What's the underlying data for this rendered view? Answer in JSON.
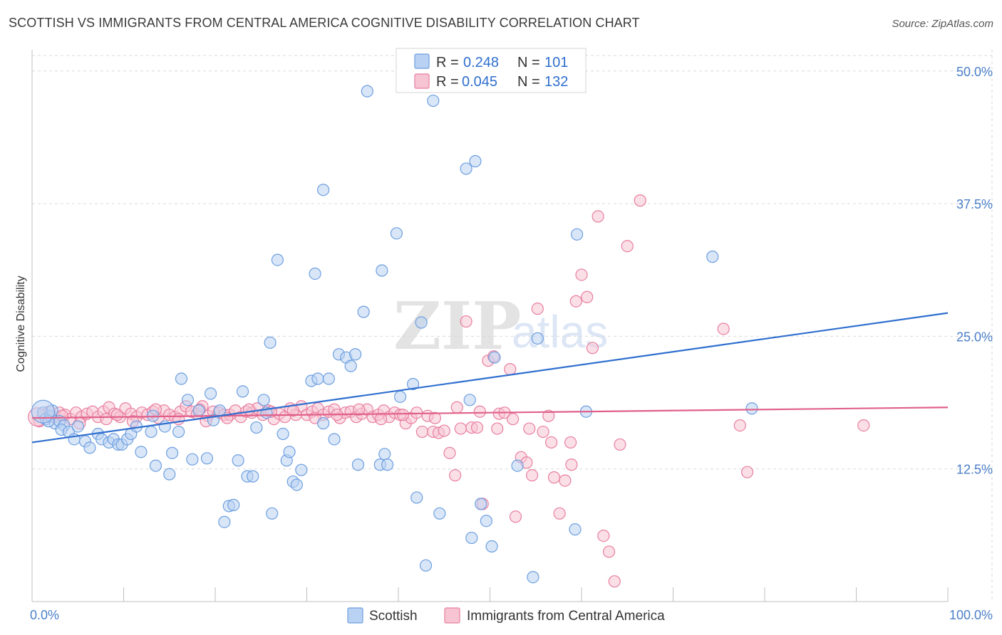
{
  "title": "SCOTTISH VS IMMIGRANTS FROM CENTRAL AMERICA COGNITIVE DISABILITY CORRELATION CHART",
  "source": "Source: ZipAtlas.com",
  "watermark": {
    "zip": "ZIP",
    "atlas": "atlas"
  },
  "colors": {
    "scottish": "#6d9fe0",
    "scottish_fill": "#b9d2f3",
    "scottish_line": "#2f6fcf",
    "immigrants": "#e87fa0",
    "immigrants_fill": "#f7c4d4",
    "immigrants_line": "#e0608a",
    "tick_text": "#4a7fc8",
    "grid": "#d9d9d9"
  },
  "legend": {
    "r_label": "R =",
    "n_label": "N =",
    "scottish_r": "0.248",
    "scottish_n": "101",
    "immigrants_r": "0.045",
    "immigrants_n": "132"
  },
  "chart_data": {
    "type": "scatter",
    "title": "SCOTTISH VS IMMIGRANTS FROM CENTRAL AMERICA COGNITIVE DISABILITY CORRELATION CHART",
    "xlabel": "",
    "ylabel": "Cognitive Disability",
    "xlim": [
      0,
      100
    ],
    "ylim": [
      0,
      52
    ],
    "x_tick_labels": [
      "0.0%",
      "100.0%"
    ],
    "y_ticks": [
      12.5,
      25.0,
      37.5,
      50.0
    ],
    "y_tick_labels": [
      "12.5%",
      "25.0%",
      "37.5%",
      "50.0%"
    ],
    "grid": true,
    "legend_position": "top-center",
    "series": [
      {
        "name": "Scottish",
        "r": 0.248,
        "n": 101,
        "trend": {
          "x": [
            0,
            100
          ],
          "y": [
            15.0,
            27.2
          ]
        },
        "points": [
          [
            1.2,
            17.8
          ],
          [
            1.5,
            17.2
          ],
          [
            2.0,
            17.5
          ],
          [
            2.5,
            16.8
          ],
          [
            3.0,
            17.0
          ],
          [
            3.5,
            16.6
          ],
          [
            1.8,
            17.0
          ],
          [
            2.2,
            18.0
          ],
          [
            3.2,
            16.2
          ],
          [
            4.0,
            16.0
          ],
          [
            5.0,
            16.5
          ],
          [
            4.6,
            15.3
          ],
          [
            5.8,
            15.1
          ],
          [
            6.3,
            14.5
          ],
          [
            7.2,
            15.8
          ],
          [
            7.6,
            15.3
          ],
          [
            8.4,
            15.0
          ],
          [
            8.9,
            15.3
          ],
          [
            9.4,
            14.8
          ],
          [
            9.8,
            14.8
          ],
          [
            10.4,
            15.3
          ],
          [
            10.8,
            15.8
          ],
          [
            11.4,
            16.5
          ],
          [
            11.9,
            14.1
          ],
          [
            13.0,
            16.0
          ],
          [
            13.2,
            17.5
          ],
          [
            13.5,
            12.8
          ],
          [
            14.5,
            16.5
          ],
          [
            15.0,
            12.0
          ],
          [
            15.3,
            14.0
          ],
          [
            16.0,
            16.0
          ],
          [
            16.3,
            21.0
          ],
          [
            17.0,
            19.0
          ],
          [
            17.5,
            13.4
          ],
          [
            18.2,
            18.0
          ],
          [
            19.1,
            13.5
          ],
          [
            19.5,
            19.6
          ],
          [
            19.8,
            17.1
          ],
          [
            20.5,
            18.0
          ],
          [
            21.5,
            9.0
          ],
          [
            21.0,
            7.5
          ],
          [
            22.0,
            9.1
          ],
          [
            22.5,
            13.3
          ],
          [
            23.0,
            19.8
          ],
          [
            23.5,
            11.8
          ],
          [
            24.1,
            11.8
          ],
          [
            24.5,
            16.4
          ],
          [
            25.3,
            19.0
          ],
          [
            25.6,
            17.8
          ],
          [
            26.0,
            24.4
          ],
          [
            26.2,
            8.3
          ],
          [
            26.8,
            32.2
          ],
          [
            27.4,
            15.8
          ],
          [
            27.8,
            13.3
          ],
          [
            28.1,
            14.1
          ],
          [
            28.5,
            11.3
          ],
          [
            28.9,
            11.0
          ],
          [
            29.4,
            12.4
          ],
          [
            30.5,
            20.8
          ],
          [
            30.9,
            30.9
          ],
          [
            31.2,
            21.0
          ],
          [
            31.8,
            16.8
          ],
          [
            31.8,
            38.8
          ],
          [
            32.4,
            21.0
          ],
          [
            33.0,
            15.3
          ],
          [
            33.5,
            23.3
          ],
          [
            34.3,
            23.0
          ],
          [
            34.8,
            22.2
          ],
          [
            35.3,
            23.3
          ],
          [
            35.6,
            12.9
          ],
          [
            36.2,
            27.3
          ],
          [
            36.6,
            48.1
          ],
          [
            38.0,
            12.9
          ],
          [
            38.5,
            13.9
          ],
          [
            38.2,
            31.2
          ],
          [
            38.8,
            12.9
          ],
          [
            39.8,
            34.7
          ],
          [
            40.2,
            19.3
          ],
          [
            42.0,
            9.8
          ],
          [
            41.6,
            20.5
          ],
          [
            42.5,
            26.3
          ],
          [
            43.0,
            3.4
          ],
          [
            43.8,
            47.2
          ],
          [
            44.5,
            8.3
          ],
          [
            45.0,
            50.1
          ],
          [
            47.4,
            40.8
          ],
          [
            47.8,
            19.0
          ],
          [
            48.0,
            6.0
          ],
          [
            48.4,
            41.5
          ],
          [
            49.0,
            9.2
          ],
          [
            49.6,
            7.6
          ],
          [
            50.5,
            23.0
          ],
          [
            50.2,
            5.2
          ],
          [
            53.0,
            12.8
          ],
          [
            54.7,
            2.3
          ],
          [
            55.2,
            24.8
          ],
          [
            59.3,
            6.8
          ],
          [
            59.5,
            34.6
          ],
          [
            74.3,
            32.5
          ],
          [
            78.6,
            18.2
          ],
          [
            60.5,
            17.9
          ]
        ]
      },
      {
        "name": "Immigrants from Central America",
        "r": 0.045,
        "n": 132,
        "trend": {
          "x": [
            0,
            100
          ],
          "y": [
            17.3,
            18.3
          ]
        },
        "points": [
          [
            0.8,
            17.0
          ],
          [
            1.3,
            17.6
          ],
          [
            1.9,
            17.9
          ],
          [
            2.4,
            17.4
          ],
          [
            3.0,
            17.8
          ],
          [
            3.6,
            17.6
          ],
          [
            4.2,
            17.2
          ],
          [
            4.8,
            17.8
          ],
          [
            5.4,
            17.4
          ],
          [
            6.0,
            17.7
          ],
          [
            6.6,
            17.9
          ],
          [
            7.2,
            17.4
          ],
          [
            7.8,
            17.9
          ],
          [
            8.4,
            18.3
          ],
          [
            9.0,
            17.7
          ],
          [
            9.6,
            17.4
          ],
          [
            10.2,
            18.2
          ],
          [
            10.8,
            17.7
          ],
          [
            11.4,
            17.4
          ],
          [
            12.0,
            17.8
          ],
          [
            12.6,
            17.6
          ],
          [
            13.2,
            17.9
          ],
          [
            13.8,
            17.3
          ],
          [
            14.4,
            18.0
          ],
          [
            15.0,
            17.6
          ],
          [
            15.6,
            17.4
          ],
          [
            16.2,
            17.9
          ],
          [
            16.8,
            18.4
          ],
          [
            17.4,
            17.9
          ],
          [
            18.0,
            17.7
          ],
          [
            18.6,
            18.4
          ],
          [
            19.2,
            17.5
          ],
          [
            19.8,
            17.9
          ],
          [
            20.4,
            17.8
          ],
          [
            21.0,
            17.6
          ],
          [
            21.6,
            17.6
          ],
          [
            22.2,
            18.0
          ],
          [
            22.8,
            17.4
          ],
          [
            23.4,
            17.9
          ],
          [
            24.0,
            17.8
          ],
          [
            24.6,
            18.2
          ],
          [
            25.2,
            17.6
          ],
          [
            25.8,
            18.0
          ],
          [
            26.4,
            17.2
          ],
          [
            27.0,
            17.7
          ],
          [
            27.6,
            17.4
          ],
          [
            28.2,
            18.2
          ],
          [
            28.8,
            17.6
          ],
          [
            29.4,
            18.4
          ],
          [
            30.0,
            17.6
          ],
          [
            30.6,
            17.9
          ],
          [
            31.2,
            18.2
          ],
          [
            31.8,
            17.6
          ],
          [
            32.4,
            17.9
          ],
          [
            33.0,
            18.1
          ],
          [
            33.6,
            17.3
          ],
          [
            34.2,
            17.8
          ],
          [
            34.8,
            17.9
          ],
          [
            35.4,
            17.4
          ],
          [
            36.0,
            17.7
          ],
          [
            36.6,
            18.1
          ],
          [
            37.2,
            17.4
          ],
          [
            37.8,
            17.6
          ],
          [
            38.4,
            18.0
          ],
          [
            39.0,
            17.4
          ],
          [
            39.6,
            17.8
          ],
          [
            40.2,
            17.6
          ],
          [
            40.8,
            16.8
          ],
          [
            41.4,
            17.3
          ],
          [
            42.0,
            17.8
          ],
          [
            42.6,
            16.0
          ],
          [
            43.2,
            17.5
          ],
          [
            43.8,
            16.0
          ],
          [
            44.4,
            15.9
          ],
          [
            45.0,
            16.1
          ],
          [
            45.6,
            14.0
          ],
          [
            46.2,
            11.9
          ],
          [
            46.8,
            16.3
          ],
          [
            47.4,
            26.4
          ],
          [
            48.0,
            16.4
          ],
          [
            48.6,
            16.4
          ],
          [
            49.2,
            9.2
          ],
          [
            49.8,
            22.7
          ],
          [
            50.4,
            23.1
          ],
          [
            51.0,
            17.7
          ],
          [
            51.6,
            17.8
          ],
          [
            52.2,
            21.9
          ],
          [
            52.8,
            8.0
          ],
          [
            53.4,
            13.6
          ],
          [
            54.0,
            13.1
          ],
          [
            54.6,
            11.9
          ],
          [
            55.2,
            27.6
          ],
          [
            55.8,
            16.0
          ],
          [
            56.4,
            17.5
          ],
          [
            57.0,
            11.7
          ],
          [
            57.6,
            8.3
          ],
          [
            58.2,
            11.4
          ],
          [
            58.8,
            15.0
          ],
          [
            59.4,
            28.3
          ],
          [
            60.0,
            30.8
          ],
          [
            60.6,
            28.7
          ],
          [
            61.2,
            23.9
          ],
          [
            61.8,
            36.3
          ],
          [
            62.4,
            6.2
          ],
          [
            63.0,
            4.7
          ],
          [
            63.6,
            1.9
          ],
          [
            64.2,
            14.8
          ],
          [
            65.0,
            33.5
          ],
          [
            66.4,
            37.8
          ],
          [
            75.5,
            25.7
          ],
          [
            77.3,
            16.6
          ],
          [
            78.1,
            12.2
          ],
          [
            90.8,
            16.6
          ],
          [
            5.2,
            16.8
          ],
          [
            8.1,
            17.2
          ],
          [
            11.0,
            17.0
          ],
          [
            13.5,
            18.1
          ],
          [
            16.0,
            17.2
          ],
          [
            18.3,
            18.1
          ],
          [
            21.3,
            17.3
          ],
          [
            23.7,
            18.1
          ],
          [
            26.1,
            17.9
          ],
          [
            28.5,
            18.0
          ],
          [
            30.9,
            17.3
          ],
          [
            33.3,
            17.6
          ],
          [
            35.7,
            18.1
          ],
          [
            38.1,
            17.2
          ],
          [
            40.5,
            17.6
          ],
          [
            44.0,
            17.3
          ],
          [
            46.4,
            18.3
          ],
          [
            48.9,
            17.9
          ],
          [
            50.8,
            16.3
          ],
          [
            52.5,
            17.2
          ],
          [
            54.3,
            16.3
          ],
          [
            56.7,
            15.0
          ],
          [
            58.9,
            12.9
          ],
          [
            2.0,
            17.4
          ],
          [
            3.3,
            17.5
          ],
          [
            9.3,
            17.6
          ],
          [
            19.0,
            17.0
          ]
        ]
      }
    ]
  }
}
